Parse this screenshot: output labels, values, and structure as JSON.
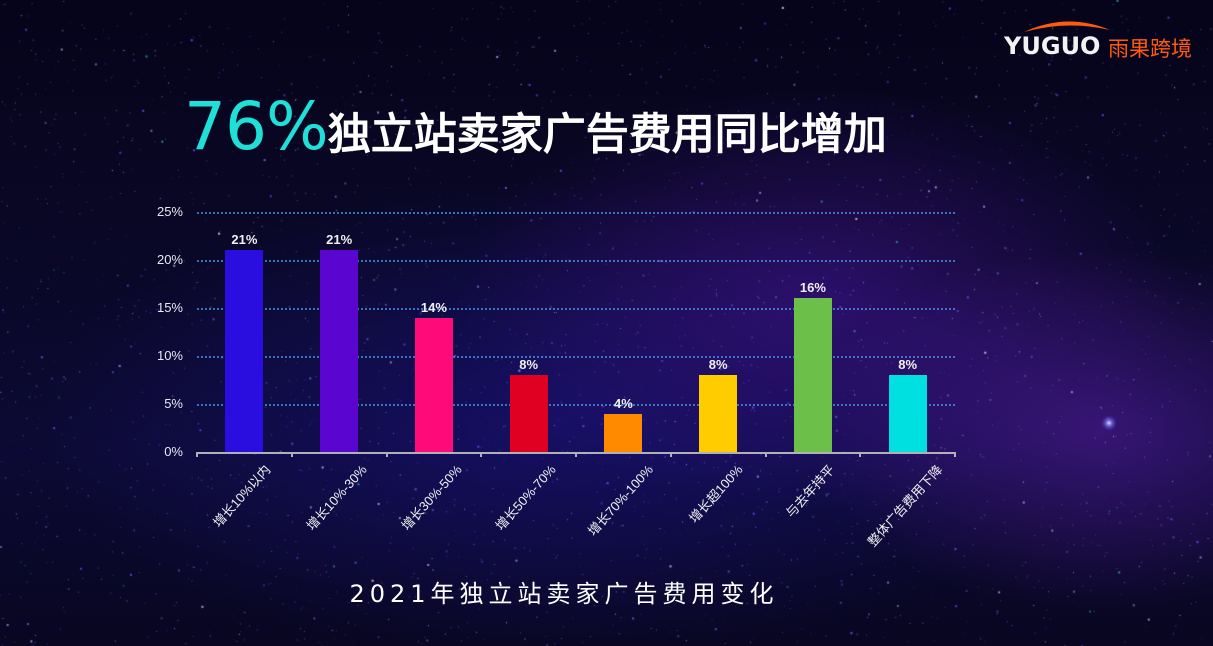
{
  "logo": {
    "text": "YUGUO",
    "cn_text": "雨果跨境",
    "arc_color": "#ff5a10"
  },
  "headline": {
    "percent": "76%",
    "text": "独立站卖家广告费用同比增加",
    "percent_color": "#1ee0d8"
  },
  "subtitle": "2021年独立站卖家广告费用变化",
  "chart_data": {
    "type": "bar",
    "title": "2021年独立站卖家广告费用变化",
    "xlabel": "",
    "ylabel": "",
    "categories": [
      "增长10%以内",
      "增长10%-30%",
      "增长30%-50%",
      "增长50%-70%",
      "增长70%-100%",
      "增长超100%",
      "与去年持平",
      "整体广告费用下降"
    ],
    "values": [
      21,
      21,
      14,
      8,
      4,
      8,
      16,
      8
    ],
    "value_labels": [
      "21%",
      "21%",
      "14%",
      "8%",
      "4%",
      "8%",
      "16%",
      "8%"
    ],
    "colors": [
      "#2a0ee0",
      "#5b06d0",
      "#ff0a78",
      "#e00022",
      "#ff8a00",
      "#ffcc00",
      "#6cc04a",
      "#00e0e0"
    ],
    "ylim": [
      0,
      25
    ],
    "yticks": [
      "0%",
      "5%",
      "10%",
      "15%",
      "20%",
      "25%"
    ],
    "grid": true,
    "legend": "none"
  }
}
